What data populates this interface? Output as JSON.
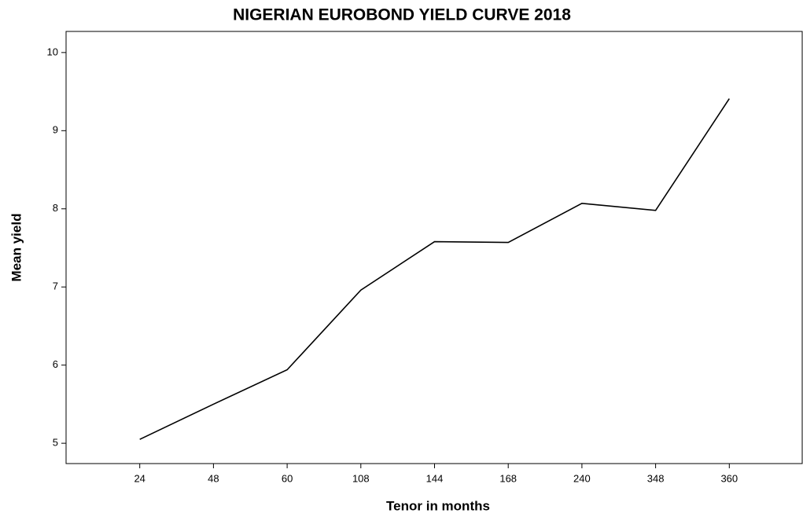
{
  "chart_data": {
    "type": "line",
    "title": "NIGERIAN EUROBOND YIELD CURVE 2018",
    "x_label": "Tenor in months",
    "y_label": "Mean yield",
    "categories": [
      "24",
      "48",
      "60",
      "108",
      "144",
      "168",
      "240",
      "348",
      "360"
    ],
    "series": [
      {
        "name": "Mean yield",
        "color": "#000000",
        "values": [
          5.05,
          5.5,
          5.94,
          6.96,
          7.58,
          7.57,
          8.07,
          7.98,
          9.41
        ]
      }
    ],
    "ylim": [
      4.74,
      10.27
    ],
    "yticks": [
      5,
      6,
      7,
      8,
      9,
      10
    ],
    "grid": false
  }
}
